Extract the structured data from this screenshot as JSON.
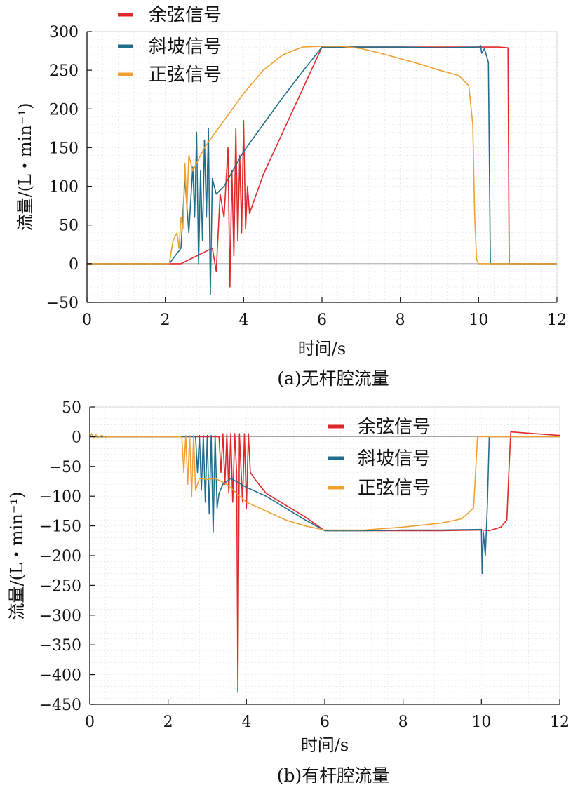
{
  "colors": {
    "cosine": "#e0282c",
    "ramp": "#206e8c",
    "sine": "#f0a030"
  },
  "chart_data": [
    {
      "type": "line",
      "caption": "(a)无杆腔流量",
      "xlabel": "时间/s",
      "ylabel": "流量/(L・min⁻¹)",
      "xlim": [
        0,
        12
      ],
      "ylim": [
        -50,
        300
      ],
      "xticks": [
        0,
        2,
        4,
        6,
        8,
        10,
        12
      ],
      "yticks": [
        -50,
        0,
        50,
        100,
        150,
        200,
        250,
        300
      ],
      "grid": true,
      "legend_position": "top-left",
      "series": [
        {
          "name": "余弦信号",
          "color_key": "cosine",
          "x": [
            0,
            2.4,
            3.0,
            3.2,
            3.3,
            3.4,
            3.5,
            3.6,
            3.65,
            3.7,
            3.75,
            3.8,
            3.85,
            3.9,
            3.95,
            4.0,
            4.05,
            4.1,
            4.15,
            4.5,
            5.0,
            5.5,
            6.0,
            7.0,
            8.0,
            9.0,
            10.0,
            10.5,
            10.75,
            10.78,
            12.0
          ],
          "y": [
            0,
            0,
            15,
            20,
            -10,
            90,
            60,
            150,
            -30,
            120,
            10,
            175,
            30,
            140,
            40,
            185,
            45,
            100,
            65,
            115,
            170,
            225,
            280,
            280,
            280,
            280,
            280,
            280,
            279,
            0,
            0
          ]
        },
        {
          "name": "斜坡信号",
          "color_key": "ramp",
          "x": [
            0,
            2.1,
            2.4,
            2.5,
            2.6,
            2.7,
            2.75,
            2.8,
            2.85,
            2.9,
            2.95,
            3.0,
            3.05,
            3.1,
            3.15,
            3.2,
            3.3,
            3.5,
            4.0,
            4.5,
            5.0,
            5.5,
            6.0,
            7.0,
            8.0,
            9.0,
            10.0,
            10.05,
            10.08,
            10.15,
            10.25,
            10.3,
            12.0
          ],
          "y": [
            0,
            0,
            20,
            110,
            40,
            125,
            60,
            170,
            0,
            120,
            30,
            160,
            60,
            175,
            -40,
            110,
            90,
            100,
            145,
            180,
            215,
            248,
            280,
            280,
            280,
            279,
            280,
            282,
            272,
            278,
            260,
            0,
            0
          ]
        },
        {
          "name": "正弦信号",
          "color_key": "sine",
          "x": [
            0,
            2.1,
            2.2,
            2.3,
            2.35,
            2.4,
            2.45,
            2.5,
            2.55,
            2.6,
            2.7,
            3.0,
            3.5,
            4.0,
            4.5,
            5.0,
            5.5,
            6.0,
            6.5,
            7.0,
            7.5,
            8.0,
            8.5,
            9.0,
            9.5,
            9.75,
            9.85,
            9.9,
            9.95,
            10.0,
            12.0
          ],
          "y": [
            0,
            0,
            30,
            40,
            20,
            60,
            45,
            130,
            70,
            140,
            120,
            150,
            185,
            220,
            250,
            270,
            280,
            281,
            281,
            278,
            272,
            265,
            258,
            250,
            243,
            230,
            180,
            60,
            5,
            0,
            0
          ]
        }
      ]
    },
    {
      "type": "line",
      "caption": "(b)有杆腔流量",
      "xlabel": "时间/s",
      "ylabel": "流量/(L・min⁻¹)",
      "xlim": [
        0,
        12
      ],
      "ylim": [
        -450,
        50
      ],
      "xticks": [
        0,
        2,
        4,
        6,
        8,
        10,
        12
      ],
      "yticks": [
        -450,
        -400,
        -350,
        -300,
        -250,
        -200,
        -150,
        -100,
        -50,
        0,
        50
      ],
      "grid": true,
      "legend_position": "top-right",
      "series": [
        {
          "name": "余弦信号",
          "color_key": "cosine",
          "x": [
            0,
            3.3,
            3.35,
            3.4,
            3.45,
            3.5,
            3.55,
            3.6,
            3.65,
            3.7,
            3.75,
            3.78,
            3.82,
            3.9,
            3.95,
            4.0,
            4.05,
            4.1,
            4.2,
            4.5,
            5.0,
            5.5,
            6.0,
            7.0,
            8.0,
            9.0,
            10.0,
            10.2,
            10.5,
            10.65,
            10.7,
            10.75,
            12.0
          ],
          "y": [
            0,
            0,
            -60,
            5,
            -80,
            5,
            -95,
            5,
            -110,
            5,
            -60,
            -430,
            5,
            -110,
            5,
            -120,
            5,
            -60,
            -70,
            -95,
            -115,
            -135,
            -158,
            -158,
            -158,
            -158,
            -157,
            -158,
            -152,
            -140,
            -60,
            8,
            2
          ]
        },
        {
          "name": "斜坡信号",
          "color_key": "ramp",
          "x": [
            0,
            2.7,
            2.75,
            2.8,
            2.85,
            2.9,
            2.95,
            3.0,
            3.05,
            3.1,
            3.15,
            3.2,
            3.25,
            3.3,
            3.4,
            3.6,
            4.0,
            4.5,
            5.0,
            5.5,
            6.0,
            7.0,
            8.0,
            9.0,
            10.0,
            10.02,
            10.05,
            10.1,
            10.15,
            10.2,
            10.25,
            12.0
          ],
          "y": [
            0,
            0,
            -60,
            2,
            -90,
            2,
            -110,
            2,
            -130,
            2,
            -160,
            2,
            -120,
            -95,
            -80,
            -70,
            -85,
            -100,
            -120,
            -140,
            -158,
            -158,
            -157,
            -157,
            -156,
            -230,
            -160,
            -200,
            -120,
            0,
            0,
            0
          ]
        },
        {
          "name": "正弦信号",
          "color_key": "sine",
          "x": [
            0,
            0.05,
            0.1,
            0.15,
            0.2,
            0.3,
            0.4,
            0.5,
            2.35,
            2.4,
            2.45,
            2.5,
            2.55,
            2.6,
            2.65,
            2.7,
            2.8,
            3.0,
            3.2,
            3.5,
            4.0,
            4.5,
            5.0,
            5.5,
            6.0,
            7.0,
            8.0,
            9.0,
            9.5,
            9.8,
            9.9,
            10.0,
            12.0
          ],
          "y": [
            0,
            5,
            -3,
            4,
            -2,
            2,
            -1,
            0,
            0,
            -60,
            2,
            -80,
            2,
            -100,
            2,
            -90,
            -70,
            -72,
            -70,
            -80,
            -110,
            -125,
            -140,
            -150,
            -157,
            -157,
            -152,
            -145,
            -138,
            -120,
            0,
            0,
            0
          ]
        }
      ]
    }
  ]
}
